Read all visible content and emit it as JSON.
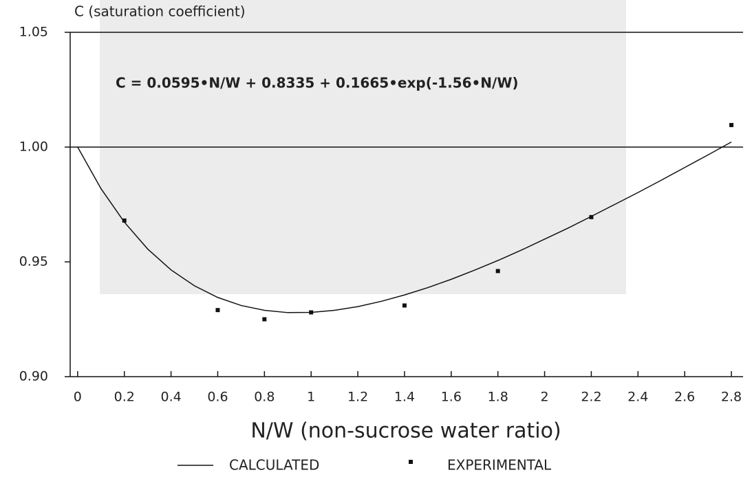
{
  "chart_data": {
    "type": "scatter",
    "title": "C (saturation coefficient)",
    "annotation": "C = 0.0595•N/W + 0.8335 + 0.1665•exp(-1.56•N/W)",
    "x_label": "N/W (non-sucrose water ratio)",
    "xlim": [
      -0.032,
      2.85
    ],
    "ylim": [
      0.9,
      1.05
    ],
    "xticks": [
      0,
      0.2,
      0.4,
      0.6,
      0.8,
      1,
      1.2,
      1.4,
      1.6,
      1.8,
      2,
      2.2,
      2.4,
      2.6,
      2.8
    ],
    "yticks": [
      {
        "value": 0.9,
        "label": "0.90"
      },
      0.95,
      {
        "value": 1,
        "label": "1.00"
      },
      1.05
    ],
    "reference_line": 1,
    "series": [
      {
        "name": "CALCULATED",
        "type": "line",
        "color": "#111",
        "x": [
          0,
          0.1,
          0.2,
          0.3,
          0.4,
          0.5,
          0.6,
          0.7,
          0.8,
          0.9,
          1,
          1.1,
          1.2,
          1.3,
          1.4,
          1.5,
          1.6,
          1.7,
          1.8,
          1.9,
          2,
          2.1,
          2.2,
          2.3,
          2.4,
          2.5,
          2.6,
          2.7,
          2.8
        ],
        "values": [
          1.0,
          0.9819,
          0.9673,
          0.9556,
          0.9465,
          0.9396,
          0.9345,
          0.931,
          0.9289,
          0.9279,
          0.928,
          0.9289,
          0.9305,
          0.9328,
          0.9356,
          0.9388,
          0.9424,
          0.9464,
          0.9506,
          0.9551,
          0.9599,
          0.9647,
          0.9698,
          0.975,
          0.9802,
          0.9856,
          0.9911,
          0.9966,
          1.0022
        ]
      },
      {
        "name": "EXPERIMENTAL",
        "type": "points",
        "color": "#111",
        "x": [
          0.2,
          0.6,
          0.8,
          1,
          1.4,
          1.8,
          2.2,
          2.8
        ],
        "values": [
          0.968,
          0.929,
          0.925,
          0.928,
          0.931,
          0.946,
          0.9695,
          1.0096
        ]
      }
    ]
  }
}
